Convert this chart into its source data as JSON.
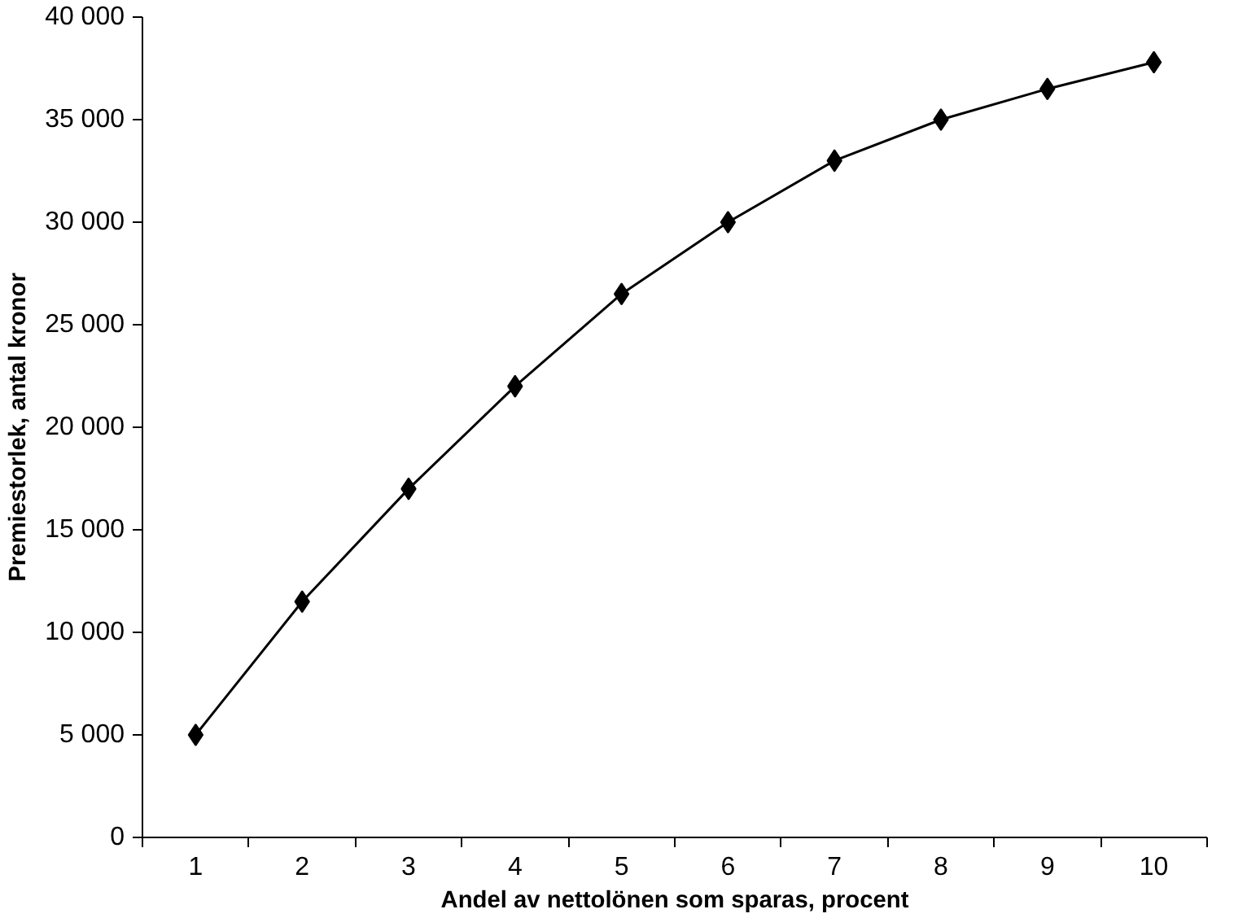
{
  "chart_data": {
    "type": "line",
    "xlabel": "Andel av nettolönen som sparas, procent",
    "ylabel": "Premiestorlek, antal kronor",
    "categories": [
      "1",
      "2",
      "3",
      "4",
      "5",
      "6",
      "7",
      "8",
      "9",
      "10"
    ],
    "series": [
      {
        "color": "#000000",
        "values": [
          5000,
          11500,
          17000,
          22000,
          26500,
          30000,
          33000,
          35000,
          36500,
          37800
        ]
      }
    ],
    "ylim": [
      0,
      40000
    ],
    "yticks": [
      0,
      {
        "value": 5000,
        "label": "5 000"
      },
      {
        "value": 10000,
        "label": "10 000"
      },
      {
        "value": 15000,
        "label": "15 000"
      },
      {
        "value": 20000,
        "label": "20 000"
      },
      {
        "value": 25000,
        "label": "25 000"
      },
      {
        "value": 30000,
        "label": "30 000"
      },
      {
        "value": 35000,
        "label": "35 000"
      },
      {
        "value": 40000,
        "label": "40 000"
      }
    ],
    "grid": false,
    "marker": "diamond",
    "line_style": "solid"
  }
}
